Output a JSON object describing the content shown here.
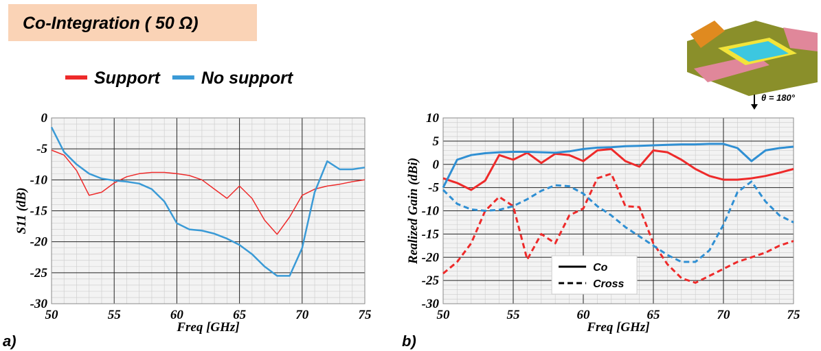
{
  "title": "Co-Integration ( 50 Ω)",
  "panel_labels": [
    "a)",
    "b)"
  ],
  "inset_label": "θ = 180°",
  "chart_data": [
    {
      "type": "line",
      "xlabel": "Freq [GHz]",
      "ylabel": "S11 (dB)",
      "x": [
        50,
        51,
        52,
        53,
        54,
        55,
        56,
        57,
        58,
        59,
        60,
        61,
        62,
        63,
        64,
        65,
        66,
        67,
        68,
        69,
        70,
        71,
        72,
        73,
        74,
        75
      ],
      "xlim": [
        50,
        75
      ],
      "xticks": [
        50,
        55,
        60,
        65,
        70,
        75
      ],
      "ylim": [
        -30,
        0
      ],
      "yticks": [
        -30,
        -25,
        -20,
        -15,
        -10,
        -5,
        0
      ],
      "grid": true,
      "series": [
        {
          "name": "Support",
          "color": "#ee2a2a",
          "width": 1.5,
          "values": [
            -5.2,
            -6,
            -8.5,
            -12.5,
            -12,
            -10.5,
            -9.5,
            -9,
            -8.8,
            -8.8,
            -9,
            -9.3,
            -10,
            -11.5,
            -13,
            -11,
            -13,
            -16.5,
            -18.8,
            -16,
            -12.5,
            -11.5,
            -11,
            -10.7,
            -10.3,
            -10
          ]
        },
        {
          "name": "No support",
          "color": "#3a9ad6",
          "width": 2.5,
          "values": [
            -1.5,
            -5.5,
            -7.5,
            -9,
            -9.8,
            -10.1,
            -10.3,
            -10.6,
            -11.5,
            -13.5,
            -17,
            -18,
            -18.2,
            -18.7,
            -19.5,
            -20.5,
            -22,
            -24,
            -25.5,
            -25.5,
            -21,
            -12,
            -7,
            -8.3,
            -8.3,
            -8
          ]
        }
      ]
    },
    {
      "type": "line",
      "xlabel": "Freq [GHz]",
      "ylabel": "Realized Gain (dBi)",
      "x": [
        50,
        51,
        52,
        53,
        54,
        55,
        56,
        57,
        58,
        59,
        60,
        61,
        62,
        63,
        64,
        65,
        66,
        67,
        68,
        69,
        70,
        71,
        72,
        73,
        74,
        75
      ],
      "xlim": [
        50,
        75
      ],
      "xticks": [
        50,
        55,
        60,
        65,
        70,
        75
      ],
      "ylim": [
        -30,
        10
      ],
      "yticks": [
        -30,
        -25,
        -20,
        -15,
        -10,
        -5,
        0,
        5,
        10
      ],
      "grid": true,
      "styles": [
        {
          "name": "Co",
          "dash": false
        },
        {
          "name": "Cross",
          "dash": true
        }
      ],
      "series": [
        {
          "color": "#ee2a2a",
          "dash": false,
          "values": [
            -3,
            -4,
            -5.5,
            -3.5,
            2,
            1,
            2.5,
            0.3,
            2.3,
            2,
            0.7,
            3,
            3.3,
            0.7,
            -0.5,
            3,
            2.6,
            1,
            -1,
            -2.5,
            -3.3,
            -3.3,
            -3,
            -2.5,
            -1.8,
            -1
          ]
        },
        {
          "color": "#2f8fd3",
          "dash": false,
          "values": [
            -5,
            1,
            2,
            2.4,
            2.6,
            2.7,
            2.7,
            2.6,
            2.5,
            2.8,
            3.3,
            3.6,
            3.7,
            3.9,
            4,
            4.1,
            4.2,
            4.3,
            4.3,
            4.4,
            4.4,
            3.5,
            0.7,
            3,
            3.5,
            3.8
          ]
        },
        {
          "color": "#ee2a2a",
          "dash": true,
          "values": [
            -23.5,
            -21,
            -17,
            -10,
            -7,
            -9,
            -20.5,
            -15,
            -17,
            -11,
            -9.5,
            -3,
            -2,
            -9,
            -9.2,
            -17,
            -21.5,
            -24.5,
            -25.5,
            -24,
            -22.5,
            -21,
            -20,
            -19,
            -17.5,
            -16.5
          ]
        },
        {
          "color": "#2f8fd3",
          "dash": true,
          "values": [
            -5.5,
            -8.5,
            -9.7,
            -10,
            -9.8,
            -9,
            -7.5,
            -5.7,
            -4.5,
            -4.7,
            -6.3,
            -9,
            -11,
            -13.5,
            -15.5,
            -17.5,
            -19.5,
            -21,
            -21,
            -18.5,
            -13,
            -6,
            -3.7,
            -8,
            -11,
            -12.5
          ]
        }
      ]
    }
  ]
}
